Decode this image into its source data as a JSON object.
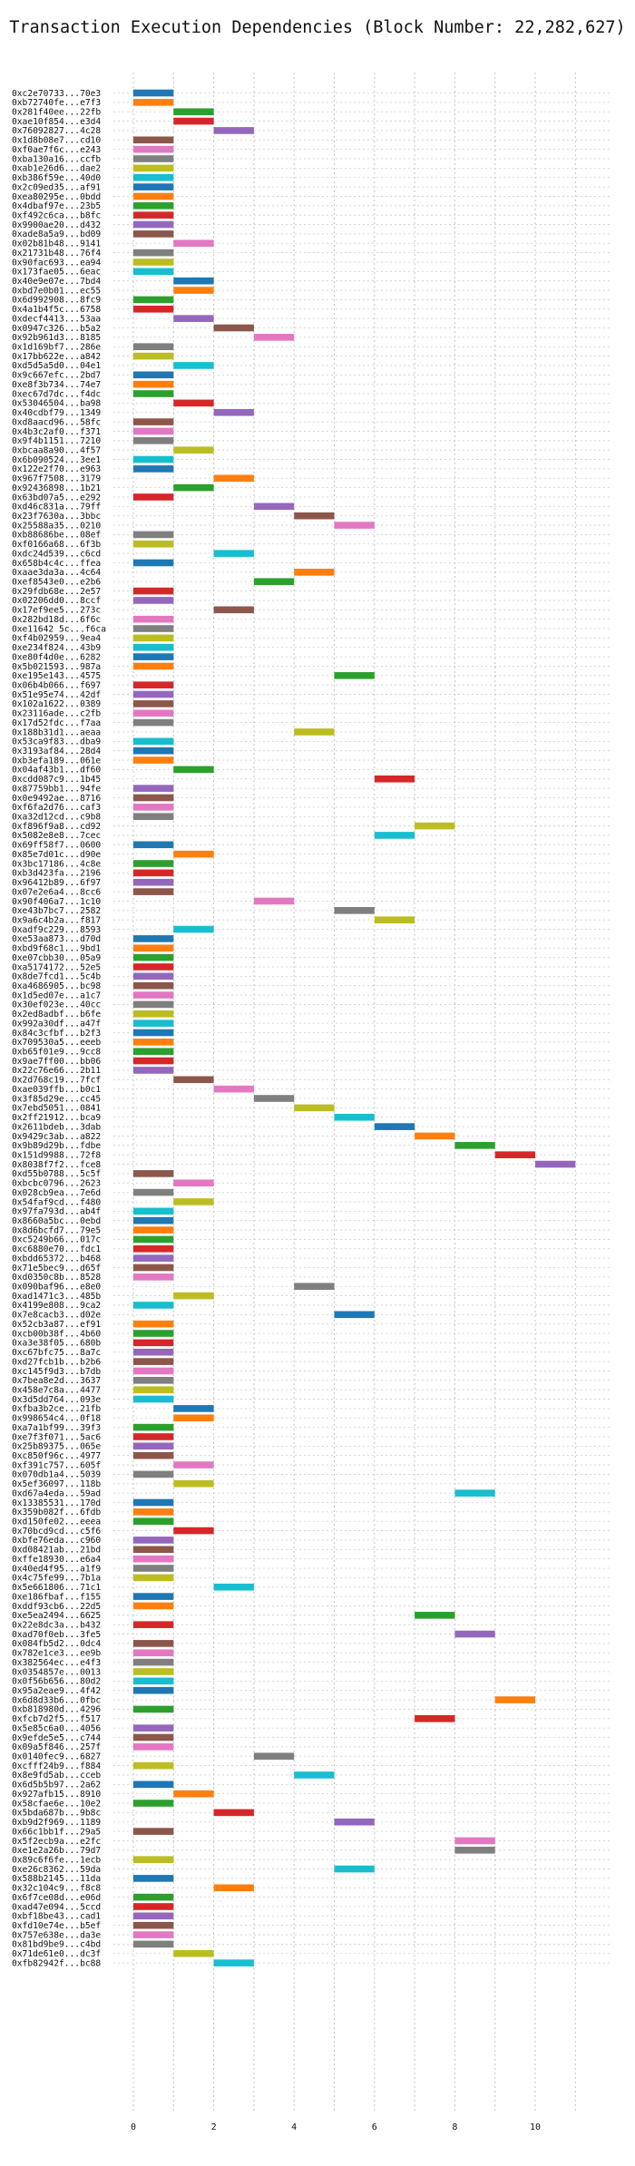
{
  "chart_data": {
    "type": "bar",
    "orientation": "horizontal-gantt",
    "title": "Transaction Execution Dependencies (Block Number: 22,282,627)",
    "xlabel": "",
    "ylabel": "",
    "xlim": [
      -0.5,
      11.8
    ],
    "xticks": [
      0,
      2,
      4,
      6,
      8,
      10
    ],
    "grid": "vertical dotted",
    "legend": "none",
    "colors": [
      "#1f77b4",
      "#ff7f0e",
      "#2ca02c",
      "#d62728",
      "#9467bd",
      "#8c564b",
      "#e377c2",
      "#7f7f7f",
      "#bcbd22",
      "#17becf"
    ],
    "transactions": [
      {
        "label": "0xc2e70733...70e3",
        "start": 0
      },
      {
        "label": "0xb72740fe...e7f3",
        "start": 0
      },
      {
        "label": "0x281f40ee...22fb",
        "start": 1
      },
      {
        "label": "0xae10f854...e3d4",
        "start": 1
      },
      {
        "label": "0x76092827...4c28",
        "start": 2
      },
      {
        "label": "0x1d8b08e7...cd10",
        "start": 0
      },
      {
        "label": "0xf0ae7f6c...e243",
        "start": 0
      },
      {
        "label": "0xba130a16...ccfb",
        "start": 0
      },
      {
        "label": "0xab1e26d6...dae2",
        "start": 0
      },
      {
        "label": "0xb386f59e...40d0",
        "start": 0
      },
      {
        "label": "0x2c09ed35...af91",
        "start": 0
      },
      {
        "label": "0xea80295e...0bdd",
        "start": 0
      },
      {
        "label": "0x4dbaf97e...23b5",
        "start": 0
      },
      {
        "label": "0xf492c6ca...b8fc",
        "start": 0
      },
      {
        "label": "0x9900ae20...d432",
        "start": 0
      },
      {
        "label": "0xade8a5a9...bd09",
        "start": 0
      },
      {
        "label": "0x02b81b48...9141",
        "start": 1
      },
      {
        "label": "0x21731b48...76f4",
        "start": 0
      },
      {
        "label": "0x90fac693...ea94",
        "start": 0
      },
      {
        "label": "0x173fae05...6eac",
        "start": 0
      },
      {
        "label": "0x40e9e07e...7bd4",
        "start": 1
      },
      {
        "label": "0xbd7e0b01...ec55",
        "start": 1
      },
      {
        "label": "0x6d992908...8fc9",
        "start": 0
      },
      {
        "label": "0x4a1b4f5c...6758",
        "start": 0
      },
      {
        "label": "0xdecf4413...53aa",
        "start": 1
      },
      {
        "label": "0x0947c326...b5a2",
        "start": 2
      },
      {
        "label": "0x92b961d3...8185",
        "start": 3
      },
      {
        "label": "0x1d169bf7...286e",
        "start": 0
      },
      {
        "label": "0x17bb622e...a842",
        "start": 0
      },
      {
        "label": "0xd5d5a5d0...04e1",
        "start": 1
      },
      {
        "label": "0x9c667efc...2bd7",
        "start": 0
      },
      {
        "label": "0xe8f3b734...74e7",
        "start": 0
      },
      {
        "label": "0xec67d7dc...f4dc",
        "start": 0
      },
      {
        "label": "0x53046504...ba98",
        "start": 1
      },
      {
        "label": "0x40cdbf79...1349",
        "start": 2
      },
      {
        "label": "0xd8aacd96...58fc",
        "start": 0
      },
      {
        "label": "0x4b3c2af0...f371",
        "start": 0
      },
      {
        "label": "0x9f4b1151...7210",
        "start": 0
      },
      {
        "label": "0xbcaa8a90...4f57",
        "start": 1
      },
      {
        "label": "0x6b090524...3ee1",
        "start": 0
      },
      {
        "label": "0x122e2f70...e963",
        "start": 0
      },
      {
        "label": "0x967f7508...3179",
        "start": 2
      },
      {
        "label": "0x92436898...1b21",
        "start": 1
      },
      {
        "label": "0x63bd07a5...e292",
        "start": 0
      },
      {
        "label": "0xd46c831a...79ff",
        "start": 3
      },
      {
        "label": "0x23f7630a...3bbc",
        "start": 4
      },
      {
        "label": "0x25588a35...0210",
        "start": 5
      },
      {
        "label": "0xb88686be...08ef",
        "start": 0
      },
      {
        "label": "0xf0166a68...6f3b",
        "start": 0
      },
      {
        "label": "0xdc24d539...c6cd",
        "start": 2
      },
      {
        "label": "0x658b4c4c...ffea",
        "start": 0
      },
      {
        "label": "0xaae3da3a...4c64",
        "start": 4
      },
      {
        "label": "0xef8543e0...e2b6",
        "start": 3
      },
      {
        "label": "0x29fdb68e...2e57",
        "start": 0
      },
      {
        "label": "0x02206dd0...8ccf",
        "start": 0
      },
      {
        "label": "0x17ef9ee5...273c",
        "start": 2
      },
      {
        "label": "0x282bd18d...6f6c",
        "start": 0
      },
      {
        "label": "0xe11642 5c...f6ca",
        "start": 0
      },
      {
        "label": "0xf4b02959...9ea4",
        "start": 0
      },
      {
        "label": "0xe234f824...43b9",
        "start": 0
      },
      {
        "label": "0xe80f4d0e...6282",
        "start": 0
      },
      {
        "label": "0x5b021593...987a",
        "start": 0
      },
      {
        "label": "0xe195e143...4575",
        "start": 5
      },
      {
        "label": "0x06b4b066...f697",
        "start": 0
      },
      {
        "label": "0x51e95e74...42df",
        "start": 0
      },
      {
        "label": "0x102a1622...0389",
        "start": 0
      },
      {
        "label": "0x23116ade...c2fb",
        "start": 0
      },
      {
        "label": "0x17d52fdc...f7aa",
        "start": 0
      },
      {
        "label": "0x188b31d1...aeaa",
        "start": 4
      },
      {
        "label": "0x53ca9f83...dba9",
        "start": 0
      },
      {
        "label": "0x3193af84...28d4",
        "start": 0
      },
      {
        "label": "0xb3efa189...061e",
        "start": 0
      },
      {
        "label": "0x04af43b1...df60",
        "start": 1
      },
      {
        "label": "0xcdd087c9...1b45",
        "start": 6
      },
      {
        "label": "0x87759bb1...94fe",
        "start": 0
      },
      {
        "label": "0x0e9492ae...8716",
        "start": 0
      },
      {
        "label": "0xf6fa2d76...caf3",
        "start": 0
      },
      {
        "label": "0xa32d12cd...c9b8",
        "start": 0
      },
      {
        "label": "0xf896f9a8...cd92",
        "start": 7
      },
      {
        "label": "0x5082e8e8...7cec",
        "start": 6
      },
      {
        "label": "0x69ff58f7...0600",
        "start": 0
      },
      {
        "label": "0x85e7d01c...d90e",
        "start": 1
      },
      {
        "label": "0x3bc17186...4c8e",
        "start": 0
      },
      {
        "label": "0xb3d423fa...2196",
        "start": 0
      },
      {
        "label": "0x96412b89...6f97",
        "start": 0
      },
      {
        "label": "0x07e2e6a4...8cc6",
        "start": 0
      },
      {
        "label": "0x90f406a7...1c10",
        "start": 3
      },
      {
        "label": "0xe43b7bc7...2582",
        "start": 5
      },
      {
        "label": "0x9a6c4b2a...f817",
        "start": 6
      },
      {
        "label": "0xadf9c229...8593",
        "start": 1
      },
      {
        "label": "0xe53aa873...d70d",
        "start": 0
      },
      {
        "label": "0xbd9f68c1...9bd1",
        "start": 0
      },
      {
        "label": "0xe07cbb30...05a9",
        "start": 0
      },
      {
        "label": "0xa5174172...52e5",
        "start": 0
      },
      {
        "label": "0x8de7fcd1...5c4b",
        "start": 0
      },
      {
        "label": "0xa4686905...bc98",
        "start": 0
      },
      {
        "label": "0x1d5ed07e...a1c7",
        "start": 0
      },
      {
        "label": "0x30ef023e...40cc",
        "start": 0
      },
      {
        "label": "0x2ed8adbf...b6fe",
        "start": 0
      },
      {
        "label": "0x992a30df...a47f",
        "start": 0
      },
      {
        "label": "0x84c3cfbf...b2f3",
        "start": 0
      },
      {
        "label": "0x709530a5...eeeb",
        "start": 0
      },
      {
        "label": "0xb65f01e9...9cc8",
        "start": 0
      },
      {
        "label": "0x9ae7ff00...bb06",
        "start": 0
      },
      {
        "label": "0x22c76e66...2b11",
        "start": 0
      },
      {
        "label": "0x2d768c19...7fcf",
        "start": 1
      },
      {
        "label": "0xae039ffb...b0c1",
        "start": 2
      },
      {
        "label": "0x3f85d29e...cc45",
        "start": 3
      },
      {
        "label": "0x7ebd5051...0841",
        "start": 4
      },
      {
        "label": "0x2ff21912...bca9",
        "start": 5
      },
      {
        "label": "0x2611bdeb...3dab",
        "start": 6
      },
      {
        "label": "0x9429c3ab...a822",
        "start": 7
      },
      {
        "label": "0x9b89d29b...fdbe",
        "start": 8
      },
      {
        "label": "0x151d9988...72f8",
        "start": 9
      },
      {
        "label": "0x8038f7f2...fce8",
        "start": 10
      },
      {
        "label": "0xd55b0788...5c5f",
        "start": 0
      },
      {
        "label": "0xbcbc0796...2623",
        "start": 1
      },
      {
        "label": "0x028cb9ea...7e6d",
        "start": 0
      },
      {
        "label": "0x54faf9cd...f480",
        "start": 1
      },
      {
        "label": "0x97fa793d...ab4f",
        "start": 0
      },
      {
        "label": "0x8660a5bc...0ebd",
        "start": 0
      },
      {
        "label": "0x8d6bcfd7...79e5",
        "start": 0
      },
      {
        "label": "0xc5249b66...017c",
        "start": 0
      },
      {
        "label": "0xc6880e70...fdc1",
        "start": 0
      },
      {
        "label": "0xbdd65372...b468",
        "start": 0
      },
      {
        "label": "0x71e5bec9...d65f",
        "start": 0
      },
      {
        "label": "0xd0350c8b...8528",
        "start": 0
      },
      {
        "label": "0x090baf96...e8e0",
        "start": 4
      },
      {
        "label": "0xad1471c3...485b",
        "start": 1
      },
      {
        "label": "0x4199e808...9ca2",
        "start": 0
      },
      {
        "label": "0x7e8cacb3...d02e",
        "start": 5
      },
      {
        "label": "0x52cb3a87...ef91",
        "start": 0
      },
      {
        "label": "0xcb00b38f...4b60",
        "start": 0
      },
      {
        "label": "0xa3e38f05...680b",
        "start": 0
      },
      {
        "label": "0xc67bfc75...8a7c",
        "start": 0
      },
      {
        "label": "0xd27fcb1b...b2b6",
        "start": 0
      },
      {
        "label": "0xc145f9d3...b7db",
        "start": 0
      },
      {
        "label": "0x7bea8e2d...3637",
        "start": 0
      },
      {
        "label": "0x458e7c8a...4477",
        "start": 0
      },
      {
        "label": "0x3d5dd764...093e",
        "start": 0
      },
      {
        "label": "0xfba3b2ce...21fb",
        "start": 1
      },
      {
        "label": "0x998654c4...0f18",
        "start": 1
      },
      {
        "label": "0xa7a1bf99...39f3",
        "start": 0
      },
      {
        "label": "0xe7f3f071...5ac6",
        "start": 0
      },
      {
        "label": "0x25b89375...065e",
        "start": 0
      },
      {
        "label": "0xc850f96c...4977",
        "start": 0
      },
      {
        "label": "0xf391c757...605f",
        "start": 1
      },
      {
        "label": "0x070db1a4...5039",
        "start": 0
      },
      {
        "label": "0x5ef36097...118b",
        "start": 1
      },
      {
        "label": "0xd67a4eda...59ad",
        "start": 8
      },
      {
        "label": "0x13385531...170d",
        "start": 0
      },
      {
        "label": "0x359b082f...6fdb",
        "start": 0
      },
      {
        "label": "0xd150fe02...eeea",
        "start": 0
      },
      {
        "label": "0x70bcd9cd...c5f6",
        "start": 1
      },
      {
        "label": "0xbfe76eda...c960",
        "start": 0
      },
      {
        "label": "0xd08421ab...21bd",
        "start": 0
      },
      {
        "label": "0xffe18930...e6a4",
        "start": 0
      },
      {
        "label": "0x40ed4f95...a1f9",
        "start": 0
      },
      {
        "label": "0x4c75fe99...7b1a",
        "start": 0
      },
      {
        "label": "0x5e661806...71c1",
        "start": 2
      },
      {
        "label": "0xe186fbaf...f155",
        "start": 0
      },
      {
        "label": "0xddf93cb6...22d5",
        "start": 0
      },
      {
        "label": "0xe5ea2494...6625",
        "start": 7
      },
      {
        "label": "0x22e8dc3a...b432",
        "start": 0
      },
      {
        "label": "0xad70f0eb...3fe5",
        "start": 8
      },
      {
        "label": "0x084fb5d2...0dc4",
        "start": 0
      },
      {
        "label": "0x782e1ce3...ee9b",
        "start": 0
      },
      {
        "label": "0x382564ec...e4f3",
        "start": 0
      },
      {
        "label": "0x0354857e...0013",
        "start": 0
      },
      {
        "label": "0x0f56b656...80d2",
        "start": 0
      },
      {
        "label": "0x95a2eae9...4f42",
        "start": 0
      },
      {
        "label": "0x6d8d33b6...0fbc",
        "start": 9
      },
      {
        "label": "0xb818980d...4296",
        "start": 0
      },
      {
        "label": "0xfcb7d2f5...f517",
        "start": 7
      },
      {
        "label": "0x5e85c6a0...4056",
        "start": 0
      },
      {
        "label": "0x9efde5e5...c744",
        "start": 0
      },
      {
        "label": "0x09a5f846...257f",
        "start": 0
      },
      {
        "label": "0x0140fec9...6827",
        "start": 3
      },
      {
        "label": "0xcfff24b9...f884",
        "start": 0
      },
      {
        "label": "0x8e9fd5ab...cceb",
        "start": 4
      },
      {
        "label": "0x6d5b5b97...2a62",
        "start": 0
      },
      {
        "label": "0x927afb15...8910",
        "start": 1
      },
      {
        "label": "0x58cfae6e...10e2",
        "start": 0
      },
      {
        "label": "0x5bda687b...9b8c",
        "start": 2
      },
      {
        "label": "0xb9d2f969...1189",
        "start": 5
      },
      {
        "label": "0x66c1bb1f...29a5",
        "start": 0
      },
      {
        "label": "0x5f2ecb9a...e2fc",
        "start": 8
      },
      {
        "label": "0xe1e2a26b...79d7",
        "start": 8
      },
      {
        "label": "0x89c6f6fe...1ecb",
        "start": 0
      },
      {
        "label": "0xe26c8362...59da",
        "start": 5
      },
      {
        "label": "0x588b2145...11da",
        "start": 0
      },
      {
        "label": "0x32c104c9...f8c8",
        "start": 2
      },
      {
        "label": "0x6f7ce08d...e06d",
        "start": 0
      },
      {
        "label": "0xad47e094...5ccd",
        "start": 0
      },
      {
        "label": "0xbf18be43...cad1",
        "start": 0
      },
      {
        "label": "0xfd10e74e...b5ef",
        "start": 0
      },
      {
        "label": "0x757e638e...da3e",
        "start": 0
      },
      {
        "label": "0x81bd9be9...c4bd",
        "start": 0
      },
      {
        "label": "0x71de61e0...dc3f",
        "start": 1
      },
      {
        "label": "0xfb82942f...bc88",
        "start": 2
      }
    ]
  }
}
